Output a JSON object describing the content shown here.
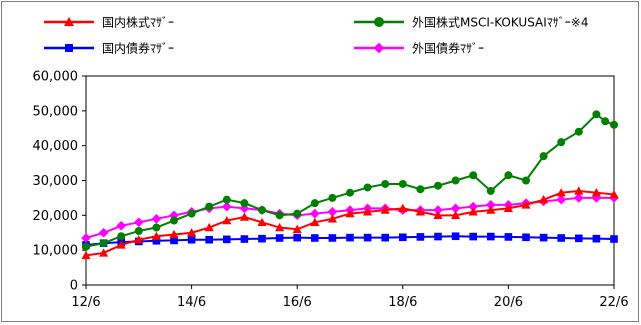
{
  "chart_data": {
    "type": "line",
    "ylim": [
      0,
      60000
    ],
    "y_ticks": [
      "0",
      "10,000",
      "20,000",
      "30,000",
      "40,000",
      "50,000",
      "60,000"
    ],
    "y_tick_values": [
      0,
      10000,
      20000,
      30000,
      40000,
      50000,
      60000
    ],
    "x_ticks": [
      "12/6",
      "14/6",
      "16/6",
      "18/6",
      "20/6",
      "22/6"
    ],
    "xlim": [
      0,
      120
    ],
    "grid": false,
    "legend_placement": "top",
    "series": [
      {
        "name": "国内株式ﾏｻﾞｰ",
        "color": "#ff0000",
        "marker": "triangle",
        "x": [
          0,
          4,
          8,
          12,
          16,
          20,
          24,
          28,
          32,
          36,
          40,
          44,
          48,
          52,
          56,
          60,
          64,
          68,
          72,
          76,
          80,
          84,
          88,
          92,
          96,
          100,
          104,
          108,
          112,
          116,
          120
        ],
        "values": [
          8500,
          9200,
          11500,
          13000,
          14000,
          14500,
          15000,
          16500,
          18500,
          19500,
          18000,
          16500,
          16000,
          18000,
          19000,
          20500,
          21000,
          21500,
          22000,
          21000,
          20000,
          20000,
          21000,
          21500,
          22000,
          23000,
          24500,
          26500,
          27000,
          26500,
          26000
        ]
      },
      {
        "name": "外国株式MSCI-KOKUSAIﾏｻﾞｰ※4",
        "color": "#008000",
        "marker": "circle",
        "x": [
          0,
          4,
          8,
          12,
          16,
          20,
          24,
          28,
          32,
          36,
          40,
          44,
          48,
          52,
          56,
          60,
          64,
          68,
          72,
          76,
          80,
          84,
          88,
          92,
          96,
          100,
          104,
          108,
          112,
          116,
          118,
          120
        ],
        "values": [
          11000,
          12000,
          14000,
          15500,
          16500,
          18500,
          20500,
          22500,
          24500,
          23500,
          21500,
          20000,
          20500,
          23500,
          25000,
          26500,
          28000,
          29000,
          29000,
          27500,
          28500,
          30000,
          31500,
          27000,
          31500,
          30000,
          37000,
          41000,
          44000,
          49000,
          47000,
          46000
        ]
      },
      {
        "name": "国内債券ﾏｻﾞｰ",
        "color": "#0000ff",
        "marker": "square",
        "x": [
          0,
          4,
          8,
          12,
          16,
          20,
          24,
          28,
          32,
          36,
          40,
          44,
          48,
          52,
          56,
          60,
          64,
          68,
          72,
          76,
          80,
          84,
          88,
          92,
          96,
          100,
          104,
          108,
          112,
          116,
          120
        ],
        "values": [
          11500,
          12000,
          12300,
          12500,
          12700,
          12800,
          13000,
          13000,
          13100,
          13200,
          13300,
          13500,
          13600,
          13500,
          13500,
          13600,
          13600,
          13600,
          13700,
          13800,
          13900,
          14000,
          13900,
          13900,
          13800,
          13700,
          13600,
          13500,
          13400,
          13300,
          13200
        ]
      },
      {
        "name": "外国債券ﾏｻﾞｰ",
        "color": "#ff00ff",
        "marker": "diamond",
        "x": [
          0,
          4,
          8,
          12,
          16,
          20,
          24,
          28,
          32,
          36,
          40,
          44,
          48,
          52,
          56,
          60,
          64,
          68,
          72,
          76,
          80,
          84,
          88,
          92,
          96,
          100,
          104,
          108,
          112,
          116,
          120
        ],
        "values": [
          13500,
          15000,
          17000,
          18000,
          19000,
          20000,
          21000,
          22000,
          22500,
          22000,
          21500,
          20500,
          20000,
          20500,
          21000,
          21500,
          22000,
          22000,
          21500,
          21500,
          21500,
          22000,
          22500,
          23000,
          23000,
          23500,
          24000,
          24500,
          25000,
          25000,
          25000
        ]
      }
    ]
  }
}
